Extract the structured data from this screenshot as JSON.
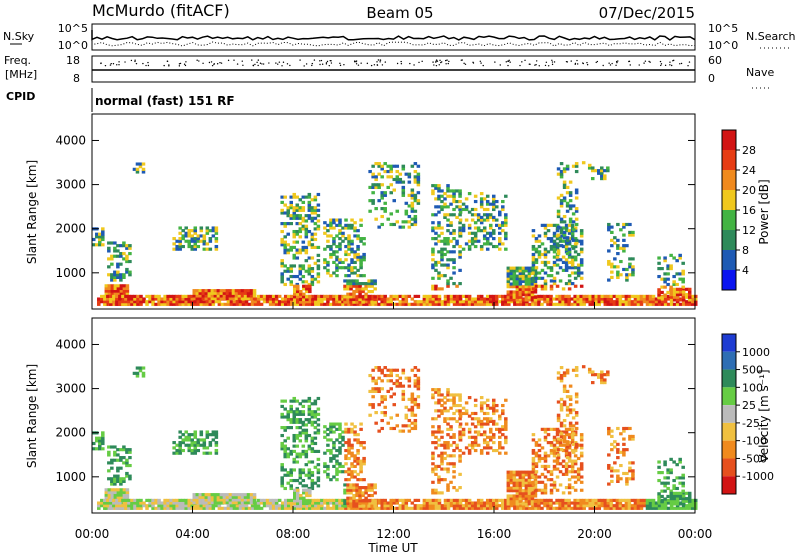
{
  "header": {
    "station": "McMurdo (fitACF)",
    "beam": "Beam 05",
    "date": "07/Dec/2015"
  },
  "top_panels": {
    "nsky_label": "N.Sky",
    "nsky_ticks": [
      "10^5",
      "10^0"
    ],
    "nsearch_label": "N.Search",
    "nsearch_ticks": [
      "10^5",
      "10^0"
    ],
    "freq_label": "Freq.",
    "freq_unit": "[MHz]",
    "freq_ticks": [
      "18",
      "8"
    ],
    "nave_label": "Nave",
    "nave_ticks": [
      "60",
      "0"
    ],
    "cpid_label": "CPID",
    "cpid_text": "normal (fast) 151 RF"
  },
  "chart_data": [
    {
      "type": "heatmap",
      "name": "power",
      "ylabel": "Slant Range [km]",
      "xlabel": "Time UT",
      "yticks": [
        "1000",
        "2000",
        "3000",
        "4000"
      ],
      "xticks": [
        "00:00",
        "04:00",
        "08:00",
        "12:00",
        "16:00",
        "20:00",
        "00:00"
      ],
      "colorbar_label": "Power [dB]",
      "colorbar_ticks": [
        "4",
        "8",
        "12",
        "16",
        "20",
        "24",
        "28"
      ],
      "colorbar_colors": [
        "#0a14f0",
        "#1e5ab4",
        "#2e8a5a",
        "#43b343",
        "#f0c81e",
        "#f08a1e",
        "#e63c14",
        "#d21414"
      ],
      "ylim": [
        180,
        4600
      ],
      "xlim_hours": [
        0,
        24
      ]
    },
    {
      "type": "heatmap",
      "name": "velocity",
      "ylabel": "Slant Range [km]",
      "xlabel": "Time UT",
      "yticks": [
        "1000",
        "2000",
        "3000",
        "4000"
      ],
      "xticks": [
        "00:00",
        "04:00",
        "08:00",
        "12:00",
        "16:00",
        "20:00",
        "00:00"
      ],
      "colorbar_label": "Velocity [m s⁻¹]",
      "colorbar_ticks": [
        "1000",
        "500",
        "100",
        "25",
        "-25",
        "-100",
        "-500",
        "-1000"
      ],
      "colorbar_colors": [
        "#1e3cd2",
        "#2e6eb4",
        "#2e8a5a",
        "#66cc44",
        "#bbbbbb",
        "#f0c040",
        "#f08a1e",
        "#e6501e",
        "#d21414"
      ],
      "ylim": [
        180,
        4600
      ],
      "xlim_hours": [
        0,
        24
      ]
    }
  ]
}
